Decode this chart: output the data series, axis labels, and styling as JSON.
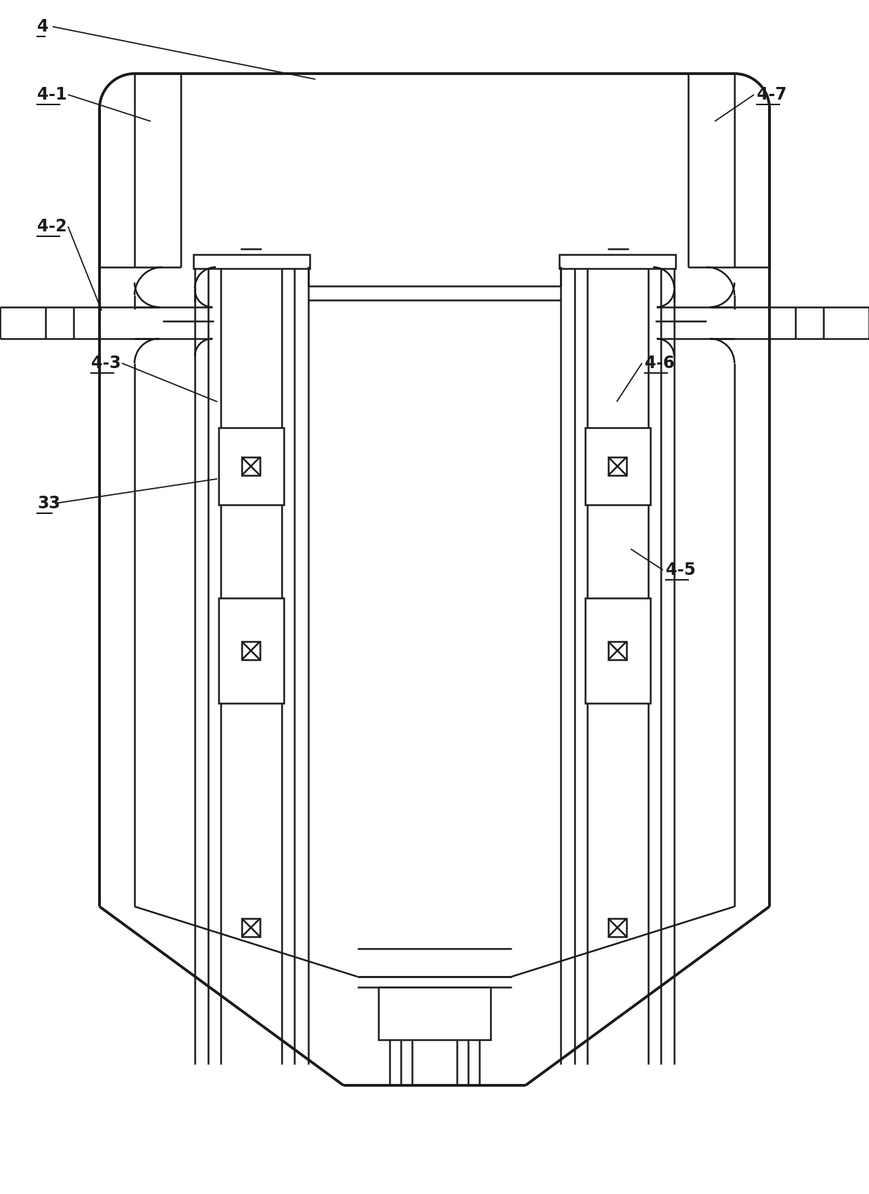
{
  "background_color": "#ffffff",
  "line_color": "#1a1a1a",
  "lw_thin": 1.2,
  "lw_med": 1.8,
  "lw_thick": 2.8,
  "fig_width": 12.4,
  "fig_height": 17.03,
  "dpi": 100
}
